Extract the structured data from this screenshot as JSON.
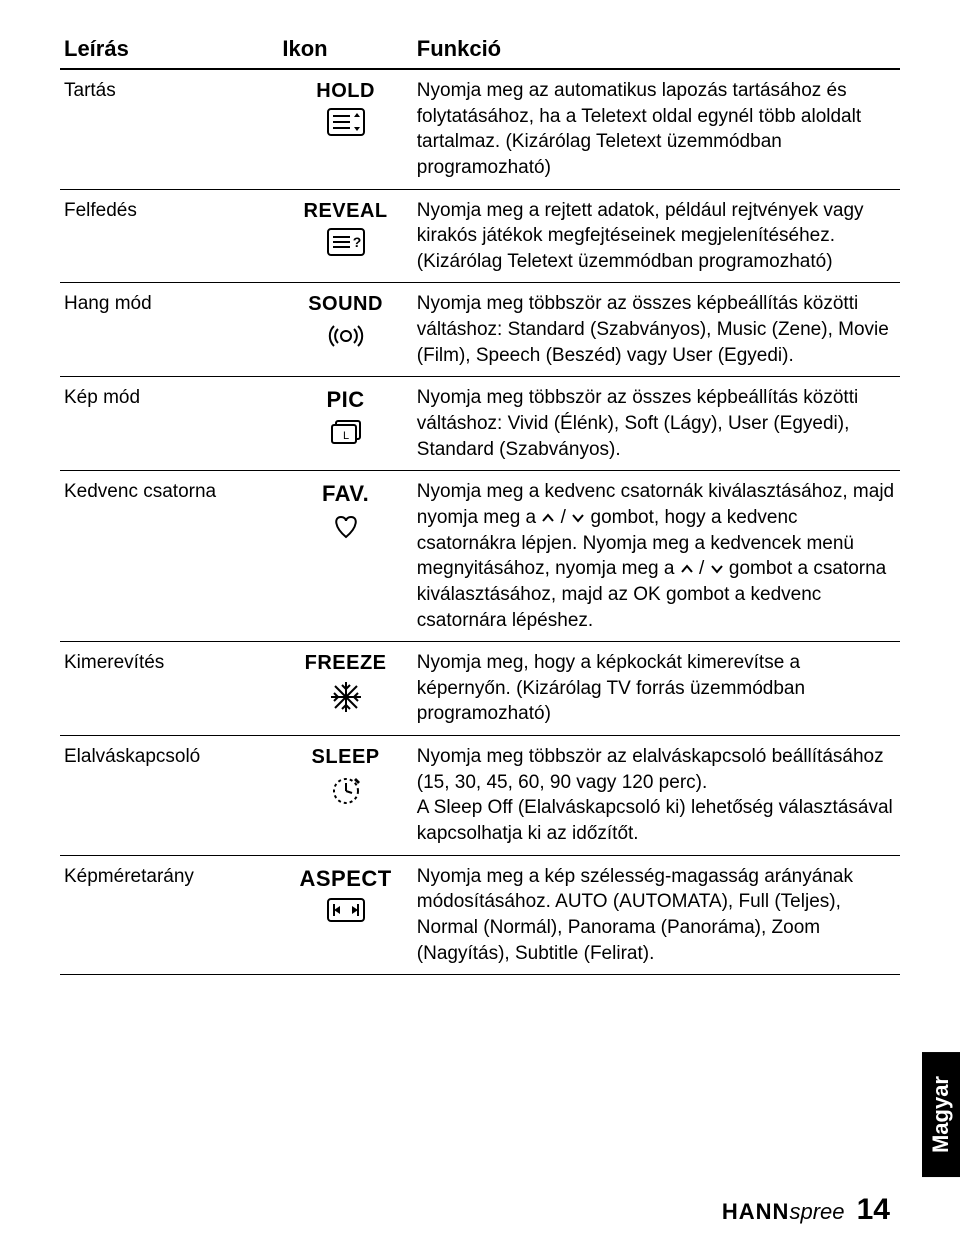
{
  "headers": {
    "desc": "Leírás",
    "icon": "Ikon",
    "func": "Funkció"
  },
  "rows": [
    {
      "desc": "Tartás",
      "iconLabel": "HOLD",
      "iconKey": "hold",
      "func": "Nyomja meg az automatikus lapozás tartásához és folytatásához, ha a Teletext oldal egynél több aloldalt tartalmaz. (Kizárólag Teletext üzemmódban programozható)"
    },
    {
      "desc": "Felfedés",
      "iconLabel": "REVEAL",
      "iconKey": "reveal",
      "func": "Nyomja meg a rejtett adatok, például rejtvények vagy kirakós játékok megfejtéseinek megjelenítéséhez. (Kizárólag Teletext üzemmódban programozható)"
    },
    {
      "desc": "Hang mód",
      "iconLabel": "SOUND",
      "iconKey": "sound",
      "func": "Nyomja meg többször az összes képbeállítás közötti váltáshoz: Standard (Szabványos), Music (Zene), Movie (Film), Speech (Beszéd) vagy User (Egyedi)."
    },
    {
      "desc": "Kép mód",
      "iconLabel": "PIC",
      "iconKey": "pic",
      "func": "Nyomja meg többször az összes képbeállítás közötti váltáshoz: Vivid (Élénk), Soft (Lágy), User (Egyedi), Standard (Szabványos)."
    },
    {
      "desc": "Kedvenc csatorna",
      "iconLabel": "FAV.",
      "iconKey": "fav",
      "funcParts": {
        "p1": "Nyomja meg a kedvenc csatornák kiválasztásához, majd nyomja meg a ",
        "p2": " / ",
        "p3": " gombot, hogy a kedvenc csatornákra lépjen. Nyomja meg a kedvencek menü megnyitásához, nyomja meg a ",
        "p4": " / ",
        "p5": " gombot a csatorna kiválasztásához, majd az OK gombot a kedvenc csatornára lépéshez."
      }
    },
    {
      "desc": "Kimerevítés",
      "iconLabel": "FREEZE",
      "iconKey": "freeze",
      "func": "Nyomja meg, hogy a képkockát kimerevítse a képernyőn. (Kizárólag TV forrás üzemmódban programozható)"
    },
    {
      "desc": "Elalváskapcsoló",
      "iconLabel": "SLEEP",
      "iconKey": "sleep",
      "func": "Nyomja meg többször az elalváskapcsoló beállításához (15, 30, 45, 60, 90 vagy 120 perc).\nA Sleep Off (Elalváskapcsoló ki) lehetőség választásával kapcsolhatja ki az időzítőt."
    },
    {
      "desc": "Képméretarány",
      "iconLabel": "ASPECT",
      "iconKey": "aspect",
      "func": "Nyomja meg a kép szélesség-magasság arányának módosításához. AUTO (AUTOMATA), Full (Teljes), Normal (Normál), Panorama (Panoráma), Zoom (Nagyítás), Subtitle (Felirat)."
    }
  ],
  "sideTab": "Magyar",
  "footer": {
    "brand1": "HANN",
    "brand2": "spree",
    "page": "14"
  },
  "iconLabelSizes": {
    "HOLD": "20px",
    "REVEAL": "20px",
    "SOUND": "20px",
    "PIC": "22px",
    "FAV.": "22px",
    "FREEZE": "20px",
    "SLEEP": "20px",
    "ASPECT": "22px"
  },
  "colors": {
    "text": "#000000",
    "bg": "#ffffff",
    "tabBg": "#000000",
    "tabText": "#ffffff"
  }
}
